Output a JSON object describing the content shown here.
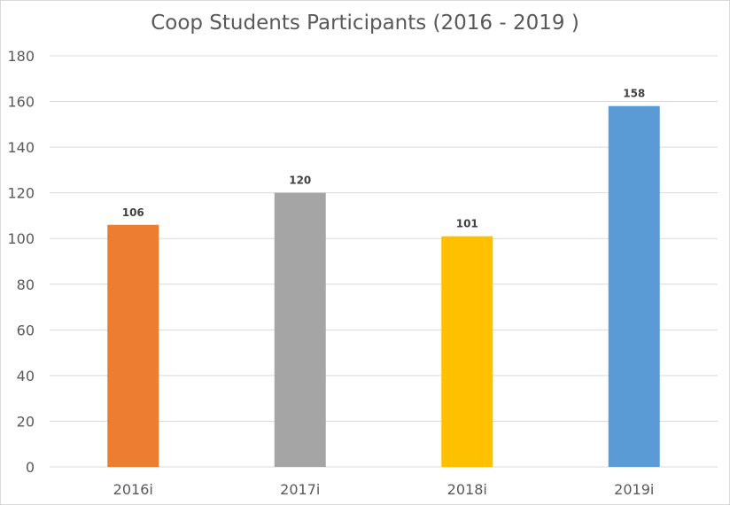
{
  "chart_data": {
    "type": "bar",
    "title": "Coop Students Participants (2016 - 2019 )",
    "categories": [
      "2016i",
      "2017i",
      "2018i",
      "2019i"
    ],
    "values": [
      106,
      120,
      101,
      158
    ],
    "bar_colors": [
      "#ed7d31",
      "#a5a5a5",
      "#ffc000",
      "#5b9bd5"
    ],
    "ylim": [
      0,
      180
    ],
    "yticks": [
      0,
      20,
      40,
      60,
      80,
      100,
      120,
      140,
      160,
      180
    ],
    "grid": true,
    "legend": "none",
    "xlabel": "",
    "ylabel": ""
  }
}
